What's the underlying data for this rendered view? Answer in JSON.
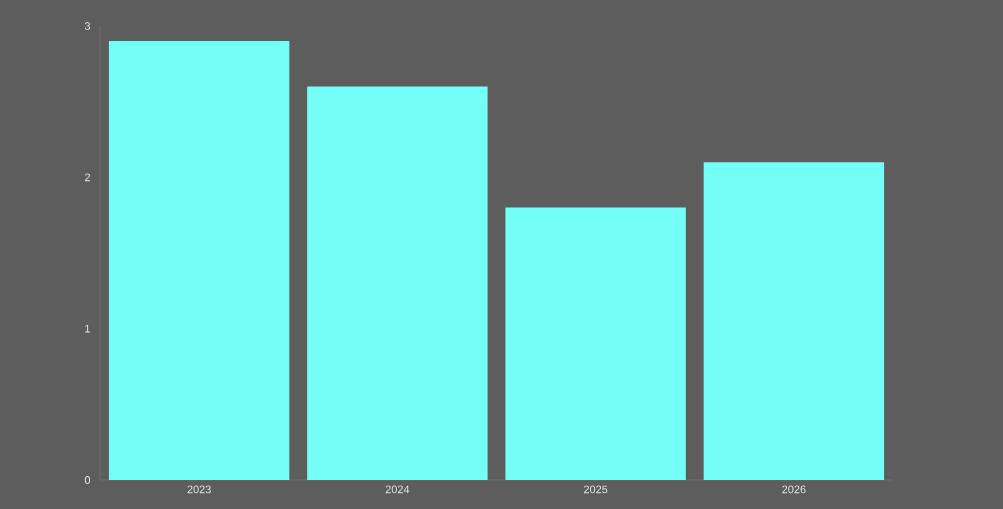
{
  "chart_data": {
    "type": "bar",
    "categories": [
      "2023",
      "2024",
      "2025",
      "2026"
    ],
    "values": [
      2.9,
      2.6,
      1.8,
      2.1
    ],
    "color": "#73fff8",
    "ylim": [
      0,
      3
    ],
    "yticks": [
      0,
      1,
      2,
      3
    ],
    "grid": false
  }
}
